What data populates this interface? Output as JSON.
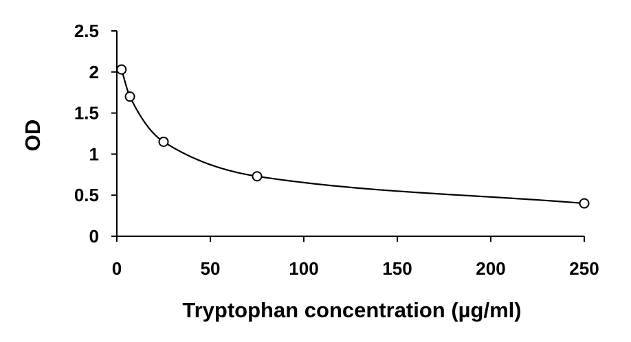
{
  "chart_data": {
    "type": "scatter",
    "title": "",
    "xlabel": "Tryptophan concentration (µg/ml)",
    "ylabel": "OD",
    "xlim": [
      0,
      250
    ],
    "ylim": [
      0,
      2.5
    ],
    "x_ticks": [
      "0",
      "50",
      "100",
      "150",
      "200",
      "250"
    ],
    "y_ticks": [
      "0",
      "0.5",
      "1",
      "1.5",
      "2",
      "2.5"
    ],
    "grid": false,
    "legend": "none",
    "series": [
      {
        "marker": "open-circle",
        "trendline": "smooth-curve",
        "color": "#000000",
        "x": [
          2.5,
          7,
          25,
          75,
          250
        ],
        "y": [
          2.03,
          1.7,
          1.15,
          0.73,
          0.4
        ]
      }
    ]
  }
}
